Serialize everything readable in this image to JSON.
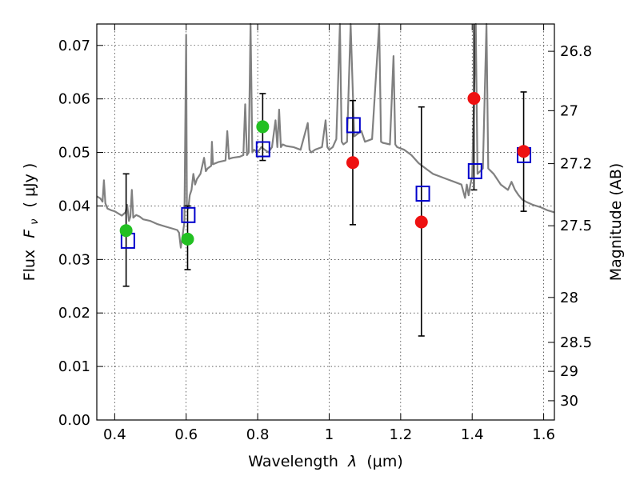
{
  "chart_data": {
    "type": "scatter",
    "title": "",
    "xlabel_text": "Wavelength",
    "xlabel_symbol": "λ",
    "xlabel_unit": "(μm)",
    "ylabel_text": "Flux",
    "ylabel_symbol": "F",
    "ylabel_subscript": "ν",
    "ylabel_unit": "( μJy )",
    "y2label": "Magnitude (AB)",
    "xlim": [
      0.35,
      1.63
    ],
    "ylim": [
      0.0,
      0.074
    ],
    "grid": true,
    "xticks": [
      {
        "value": 0.4,
        "label": "0.4"
      },
      {
        "value": 0.6,
        "label": "0.6"
      },
      {
        "value": 0.8,
        "label": "0.8"
      },
      {
        "value": 1.0,
        "label": "1"
      },
      {
        "value": 1.2,
        "label": "1.2"
      },
      {
        "value": 1.4,
        "label": "1.4"
      },
      {
        "value": 1.6,
        "label": "1.6"
      }
    ],
    "yticks": [
      {
        "value": 0.0,
        "label": "0.00"
      },
      {
        "value": 0.01,
        "label": "0.01"
      },
      {
        "value": 0.02,
        "label": "0.02"
      },
      {
        "value": 0.03,
        "label": "0.03"
      },
      {
        "value": 0.04,
        "label": "0.04"
      },
      {
        "value": 0.05,
        "label": "0.05"
      },
      {
        "value": 0.06,
        "label": "0.06"
      },
      {
        "value": 0.07,
        "label": "0.07"
      }
    ],
    "magnitude_ticks": [
      {
        "flux": 0.0689,
        "label": "26.8"
      },
      {
        "flux": 0.0578,
        "label": "27"
      },
      {
        "flux": 0.0479,
        "label": "27.2"
      },
      {
        "flux": 0.0363,
        "label": "27.5"
      },
      {
        "flux": 0.0229,
        "label": "28"
      },
      {
        "flux": 0.0145,
        "label": "28.5"
      },
      {
        "flux": 0.0091,
        "label": "29"
      },
      {
        "flux": 0.0036,
        "label": "30"
      }
    ],
    "colors": {
      "spectrum": "#808080",
      "model": "#0000cc",
      "green": "#22c022",
      "red": "#ee1111",
      "errorbar": "#000000"
    },
    "spectrum": [
      [
        0.35,
        0.0418
      ],
      [
        0.36,
        0.0414
      ],
      [
        0.366,
        0.0408
      ],
      [
        0.37,
        0.0448
      ],
      [
        0.374,
        0.0405
      ],
      [
        0.38,
        0.0395
      ],
      [
        0.39,
        0.0392
      ],
      [
        0.4,
        0.039
      ],
      [
        0.41,
        0.0386
      ],
      [
        0.42,
        0.0382
      ],
      [
        0.43,
        0.0388
      ],
      [
        0.435,
        0.0402
      ],
      [
        0.44,
        0.0372
      ],
      [
        0.444,
        0.038
      ],
      [
        0.448,
        0.043
      ],
      [
        0.452,
        0.0378
      ],
      [
        0.46,
        0.0383
      ],
      [
        0.47,
        0.038
      ],
      [
        0.48,
        0.0375
      ],
      [
        0.5,
        0.0372
      ],
      [
        0.52,
        0.0366
      ],
      [
        0.54,
        0.0362
      ],
      [
        0.56,
        0.0358
      ],
      [
        0.575,
        0.0355
      ],
      [
        0.58,
        0.035
      ],
      [
        0.585,
        0.0322
      ],
      [
        0.59,
        0.0345
      ],
      [
        0.595,
        0.037
      ],
      [
        0.6,
        0.072
      ],
      [
        0.602,
        0.04
      ],
      [
        0.606,
        0.0395
      ],
      [
        0.61,
        0.042
      ],
      [
        0.615,
        0.043
      ],
      [
        0.62,
        0.046
      ],
      [
        0.625,
        0.044
      ],
      [
        0.63,
        0.045
      ],
      [
        0.64,
        0.046
      ],
      [
        0.65,
        0.049
      ],
      [
        0.655,
        0.0465
      ],
      [
        0.66,
        0.047
      ],
      [
        0.67,
        0.0475
      ],
      [
        0.672,
        0.052
      ],
      [
        0.675,
        0.0478
      ],
      [
        0.69,
        0.0482
      ],
      [
        0.71,
        0.0485
      ],
      [
        0.715,
        0.054
      ],
      [
        0.72,
        0.0488
      ],
      [
        0.73,
        0.049
      ],
      [
        0.75,
        0.0492
      ],
      [
        0.76,
        0.0495
      ],
      [
        0.765,
        0.059
      ],
      [
        0.77,
        0.0495
      ],
      [
        0.775,
        0.05
      ],
      [
        0.78,
        0.074
      ],
      [
        0.785,
        0.05
      ],
      [
        0.79,
        0.0505
      ],
      [
        0.8,
        0.05
      ],
      [
        0.81,
        0.051
      ],
      [
        0.82,
        0.0505
      ],
      [
        0.83,
        0.05
      ],
      [
        0.84,
        0.051
      ],
      [
        0.85,
        0.056
      ],
      [
        0.855,
        0.051
      ],
      [
        0.86,
        0.058
      ],
      [
        0.865,
        0.051
      ],
      [
        0.87,
        0.0515
      ],
      [
        0.88,
        0.0512
      ],
      [
        0.9,
        0.051
      ],
      [
        0.92,
        0.0505
      ],
      [
        0.94,
        0.0555
      ],
      [
        0.945,
        0.0505
      ],
      [
        0.95,
        0.05
      ],
      [
        0.96,
        0.0505
      ],
      [
        0.98,
        0.051
      ],
      [
        0.99,
        0.056
      ],
      [
        0.995,
        0.051
      ],
      [
        1.0,
        0.0505
      ],
      [
        1.01,
        0.051
      ],
      [
        1.02,
        0.0525
      ],
      [
        1.03,
        0.074
      ],
      [
        1.035,
        0.052
      ],
      [
        1.04,
        0.0515
      ],
      [
        1.05,
        0.052
      ],
      [
        1.06,
        0.074
      ],
      [
        1.07,
        0.053
      ],
      [
        1.08,
        0.0535
      ],
      [
        1.09,
        0.054
      ],
      [
        1.1,
        0.052
      ],
      [
        1.12,
        0.0525
      ],
      [
        1.14,
        0.074
      ],
      [
        1.145,
        0.052
      ],
      [
        1.15,
        0.0518
      ],
      [
        1.17,
        0.0515
      ],
      [
        1.18,
        0.068
      ],
      [
        1.185,
        0.0515
      ],
      [
        1.19,
        0.051
      ],
      [
        1.21,
        0.0505
      ],
      [
        1.23,
        0.0495
      ],
      [
        1.25,
        0.048
      ],
      [
        1.27,
        0.047
      ],
      [
        1.29,
        0.046
      ],
      [
        1.31,
        0.0455
      ],
      [
        1.33,
        0.045
      ],
      [
        1.35,
        0.0445
      ],
      [
        1.37,
        0.044
      ],
      [
        1.38,
        0.0415
      ],
      [
        1.385,
        0.044
      ],
      [
        1.39,
        0.042
      ],
      [
        1.395,
        0.044
      ],
      [
        1.4,
        0.0455
      ],
      [
        1.41,
        0.074
      ],
      [
        1.415,
        0.046
      ],
      [
        1.43,
        0.047
      ],
      [
        1.44,
        0.074
      ],
      [
        1.445,
        0.047
      ],
      [
        1.46,
        0.046
      ],
      [
        1.48,
        0.044
      ],
      [
        1.5,
        0.043
      ],
      [
        1.51,
        0.0445
      ],
      [
        1.52,
        0.043
      ],
      [
        1.53,
        0.042
      ],
      [
        1.54,
        0.0412
      ],
      [
        1.55,
        0.0408
      ],
      [
        1.57,
        0.0402
      ],
      [
        1.59,
        0.0398
      ],
      [
        1.61,
        0.0392
      ],
      [
        1.62,
        0.039
      ],
      [
        1.63,
        0.0388
      ]
    ],
    "model_points": [
      {
        "x": 0.437,
        "y": 0.0335
      },
      {
        "x": 0.606,
        "y": 0.0383
      },
      {
        "x": 0.815,
        "y": 0.0506
      },
      {
        "x": 1.068,
        "y": 0.0551
      },
      {
        "x": 1.262,
        "y": 0.0423
      },
      {
        "x": 1.408,
        "y": 0.0465
      },
      {
        "x": 1.545,
        "y": 0.0495
      }
    ],
    "observed_points": [
      {
        "x": 0.432,
        "y": 0.0354,
        "err_low": 0.025,
        "err_high": 0.046,
        "color": "green"
      },
      {
        "x": 0.604,
        "y": 0.0338,
        "err_low": 0.0281,
        "err_high": 0.04,
        "color": "green"
      },
      {
        "x": 0.814,
        "y": 0.0548,
        "err_low": 0.0485,
        "err_high": 0.061,
        "color": "green"
      },
      {
        "x": 1.066,
        "y": 0.0481,
        "err_low": 0.0365,
        "err_high": 0.0597,
        "color": "red"
      },
      {
        "x": 1.258,
        "y": 0.037,
        "err_low": 0.0157,
        "err_high": 0.0585,
        "color": "red"
      },
      {
        "x": 1.405,
        "y": 0.0601,
        "err_low": 0.043,
        "err_high": 0.074,
        "color": "red"
      },
      {
        "x": 1.544,
        "y": 0.0502,
        "err_low": 0.039,
        "err_high": 0.0613,
        "color": "red"
      }
    ]
  }
}
